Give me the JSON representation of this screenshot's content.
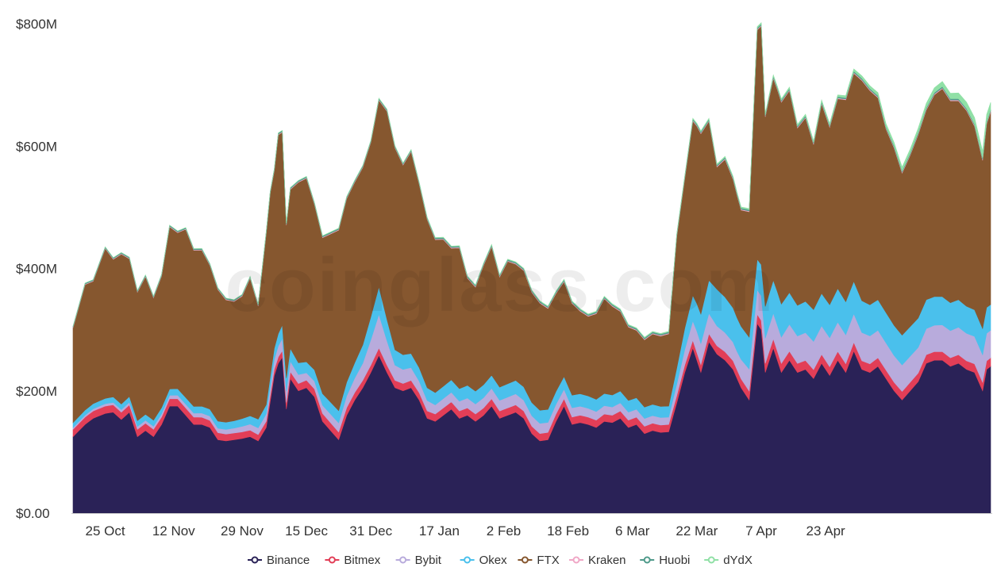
{
  "chart_data": {
    "type": "area",
    "stacked": true,
    "title": "",
    "xlabel": "",
    "ylabel": "",
    "watermark": "coinglass.com",
    "ylim": [
      0,
      800
    ],
    "y_ticks": [
      0,
      200,
      400,
      600,
      800
    ],
    "y_tick_labels": [
      "$0.00",
      "$200M",
      "$400M",
      "$600M",
      "$800M"
    ],
    "x_tick_labels": [
      "25 Oct",
      "12 Nov",
      "29 Nov",
      "15 Dec",
      "31 Dec",
      "17 Jan",
      "2 Feb",
      "18 Feb",
      "6 Mar",
      "22 Mar",
      "7 Apr",
      "23 Apr"
    ],
    "x_tick_positions": [
      8,
      25,
      42,
      58,
      74,
      91,
      107,
      123,
      139,
      155,
      171,
      187
    ],
    "x_range": [
      0,
      211
    ],
    "legend_position": "bottom",
    "series": [
      {
        "name": "Binance",
        "color": "#2a2257",
        "keyframes": [
          [
            0,
            125
          ],
          [
            3,
            145
          ],
          [
            5,
            155
          ],
          [
            8,
            163
          ],
          [
            10,
            165
          ],
          [
            12,
            153
          ],
          [
            14,
            165
          ],
          [
            16,
            125
          ],
          [
            18,
            135
          ],
          [
            20,
            125
          ],
          [
            22,
            145
          ],
          [
            24,
            175
          ],
          [
            26,
            175
          ],
          [
            28,
            160
          ],
          [
            30,
            145
          ],
          [
            32,
            145
          ],
          [
            34,
            140
          ],
          [
            36,
            120
          ],
          [
            38,
            118
          ],
          [
            40,
            120
          ],
          [
            42,
            122
          ],
          [
            44,
            125
          ],
          [
            46,
            118
          ],
          [
            48,
            140
          ],
          [
            50,
            225
          ],
          [
            51,
            245
          ],
          [
            52,
            255
          ],
          [
            53,
            170
          ],
          [
            54,
            220
          ],
          [
            56,
            200
          ],
          [
            58,
            205
          ],
          [
            60,
            190
          ],
          [
            62,
            150
          ],
          [
            64,
            135
          ],
          [
            66,
            120
          ],
          [
            68,
            160
          ],
          [
            70,
            185
          ],
          [
            72,
            205
          ],
          [
            74,
            230
          ],
          [
            76,
            258
          ],
          [
            78,
            230
          ],
          [
            80,
            205
          ],
          [
            82,
            200
          ],
          [
            84,
            205
          ],
          [
            86,
            185
          ],
          [
            88,
            155
          ],
          [
            90,
            150
          ],
          [
            92,
            160
          ],
          [
            94,
            170
          ],
          [
            96,
            155
          ],
          [
            98,
            160
          ],
          [
            100,
            150
          ],
          [
            102,
            160
          ],
          [
            104,
            175
          ],
          [
            106,
            155
          ],
          [
            108,
            160
          ],
          [
            110,
            165
          ],
          [
            112,
            155
          ],
          [
            114,
            130
          ],
          [
            116,
            118
          ],
          [
            118,
            120
          ],
          [
            120,
            150
          ],
          [
            122,
            175
          ],
          [
            124,
            145
          ],
          [
            126,
            148
          ],
          [
            128,
            145
          ],
          [
            130,
            140
          ],
          [
            132,
            150
          ],
          [
            134,
            148
          ],
          [
            136,
            155
          ],
          [
            138,
            140
          ],
          [
            140,
            145
          ],
          [
            142,
            130
          ],
          [
            144,
            135
          ],
          [
            146,
            132
          ],
          [
            148,
            133
          ],
          [
            150,
            180
          ],
          [
            152,
            230
          ],
          [
            154,
            270
          ],
          [
            156,
            230
          ],
          [
            158,
            280
          ],
          [
            160,
            260
          ],
          [
            162,
            250
          ],
          [
            164,
            235
          ],
          [
            166,
            205
          ],
          [
            168,
            185
          ],
          [
            170,
            310
          ],
          [
            171,
            300
          ],
          [
            172,
            230
          ],
          [
            174,
            270
          ],
          [
            176,
            230
          ],
          [
            178,
            250
          ],
          [
            180,
            230
          ],
          [
            182,
            235
          ],
          [
            184,
            220
          ],
          [
            186,
            245
          ],
          [
            188,
            225
          ],
          [
            190,
            250
          ],
          [
            192,
            230
          ],
          [
            194,
            265
          ],
          [
            196,
            235
          ],
          [
            198,
            230
          ],
          [
            200,
            240
          ],
          [
            202,
            220
          ],
          [
            204,
            200
          ],
          [
            206,
            185
          ],
          [
            208,
            200
          ],
          [
            210,
            215
          ],
          [
            212,
            245
          ],
          [
            214,
            250
          ],
          [
            216,
            250
          ],
          [
            218,
            240
          ],
          [
            220,
            245
          ],
          [
            222,
            235
          ],
          [
            224,
            230
          ],
          [
            226,
            200
          ],
          [
            227,
            235
          ],
          [
            228,
            240
          ]
        ]
      },
      {
        "name": "Bitmex",
        "color": "#e23e57",
        "keyframes": [
          [
            0,
            12
          ],
          [
            30,
            12
          ],
          [
            50,
            10
          ],
          [
            60,
            13
          ],
          [
            75,
            12
          ],
          [
            100,
            12
          ],
          [
            125,
            12
          ],
          [
            150,
            12
          ],
          [
            170,
            15
          ],
          [
            200,
            14
          ],
          [
            228,
            14
          ]
        ]
      },
      {
        "name": "Bybit",
        "color": "#b8abdc",
        "keyframes": [
          [
            0,
            3
          ],
          [
            20,
            5
          ],
          [
            40,
            8
          ],
          [
            48,
            12
          ],
          [
            52,
            20
          ],
          [
            58,
            12
          ],
          [
            66,
            15
          ],
          [
            72,
            28
          ],
          [
            76,
            55
          ],
          [
            80,
            25
          ],
          [
            90,
            15
          ],
          [
            110,
            18
          ],
          [
            130,
            14
          ],
          [
            148,
            12
          ],
          [
            155,
            35
          ],
          [
            165,
            30
          ],
          [
            170,
            40
          ],
          [
            180,
            45
          ],
          [
            190,
            48
          ],
          [
            200,
            45
          ],
          [
            210,
            42
          ],
          [
            220,
            45
          ],
          [
            228,
            45
          ]
        ]
      },
      {
        "name": "Okex",
        "color": "#4ac0ec",
        "keyframes": [
          [
            0,
            8
          ],
          [
            20,
            10
          ],
          [
            40,
            12
          ],
          [
            48,
            15
          ],
          [
            52,
            22
          ],
          [
            58,
            18
          ],
          [
            66,
            20
          ],
          [
            70,
            25
          ],
          [
            72,
            30
          ],
          [
            76,
            45
          ],
          [
            80,
            25
          ],
          [
            90,
            20
          ],
          [
            110,
            22
          ],
          [
            130,
            20
          ],
          [
            148,
            18
          ],
          [
            152,
            35
          ],
          [
            155,
            45
          ],
          [
            160,
            60
          ],
          [
            165,
            55
          ],
          [
            170,
            50
          ],
          [
            175,
            55
          ],
          [
            180,
            50
          ],
          [
            190,
            55
          ],
          [
            200,
            50
          ],
          [
            210,
            48
          ],
          [
            220,
            45
          ],
          [
            228,
            42
          ]
        ]
      },
      {
        "name": "FTX",
        "color": "#86572f",
        "keyframes": [
          [
            0,
            155
          ],
          [
            3,
            205
          ],
          [
            5,
            200
          ],
          [
            8,
            245
          ],
          [
            10,
            225
          ],
          [
            12,
            245
          ],
          [
            14,
            225
          ],
          [
            16,
            210
          ],
          [
            18,
            225
          ],
          [
            20,
            200
          ],
          [
            22,
            215
          ],
          [
            24,
            265
          ],
          [
            26,
            255
          ],
          [
            28,
            275
          ],
          [
            30,
            255
          ],
          [
            32,
            255
          ],
          [
            34,
            235
          ],
          [
            36,
            215
          ],
          [
            38,
            200
          ],
          [
            40,
            195
          ],
          [
            42,
            200
          ],
          [
            44,
            225
          ],
          [
            46,
            185
          ],
          [
            48,
            280
          ],
          [
            49,
            300
          ],
          [
            50,
            290
          ],
          [
            51,
            325
          ],
          [
            52,
            315
          ],
          [
            53,
            250
          ],
          [
            54,
            260
          ],
          [
            56,
            295
          ],
          [
            58,
            300
          ],
          [
            60,
            270
          ],
          [
            62,
            255
          ],
          [
            64,
            275
          ],
          [
            66,
            295
          ],
          [
            68,
            300
          ],
          [
            70,
            295
          ],
          [
            72,
            290
          ],
          [
            74,
            285
          ],
          [
            76,
            305
          ],
          [
            78,
            340
          ],
          [
            80,
            330
          ],
          [
            82,
            310
          ],
          [
            84,
            330
          ],
          [
            86,
            300
          ],
          [
            88,
            275
          ],
          [
            90,
            250
          ],
          [
            92,
            240
          ],
          [
            94,
            215
          ],
          [
            96,
            230
          ],
          [
            98,
            175
          ],
          [
            100,
            170
          ],
          [
            102,
            195
          ],
          [
            104,
            210
          ],
          [
            106,
            180
          ],
          [
            108,
            200
          ],
          [
            110,
            190
          ],
          [
            112,
            190
          ],
          [
            114,
            180
          ],
          [
            116,
            175
          ],
          [
            118,
            165
          ],
          [
            120,
            160
          ],
          [
            122,
            155
          ],
          [
            124,
            150
          ],
          [
            126,
            135
          ],
          [
            128,
            130
          ],
          [
            130,
            140
          ],
          [
            132,
            155
          ],
          [
            134,
            145
          ],
          [
            136,
            130
          ],
          [
            138,
            120
          ],
          [
            140,
            110
          ],
          [
            142,
            110
          ],
          [
            144,
            115
          ],
          [
            146,
            115
          ],
          [
            148,
            118
          ],
          [
            150,
            215
          ],
          [
            152,
            245
          ],
          [
            154,
            285
          ],
          [
            156,
            295
          ],
          [
            158,
            260
          ],
          [
            160,
            200
          ],
          [
            162,
            225
          ],
          [
            164,
            210
          ],
          [
            166,
            190
          ],
          [
            168,
            205
          ],
          [
            170,
            375
          ],
          [
            171,
            390
          ],
          [
            172,
            310
          ],
          [
            174,
            330
          ],
          [
            176,
            330
          ],
          [
            178,
            330
          ],
          [
            180,
            290
          ],
          [
            182,
            300
          ],
          [
            184,
            270
          ],
          [
            186,
            310
          ],
          [
            188,
            290
          ],
          [
            190,
            310
          ],
          [
            192,
            330
          ],
          [
            194,
            340
          ],
          [
            196,
            360
          ],
          [
            198,
            350
          ],
          [
            200,
            330
          ],
          [
            202,
            300
          ],
          [
            204,
            290
          ],
          [
            206,
            265
          ],
          [
            208,
            280
          ],
          [
            210,
            300
          ],
          [
            212,
            310
          ],
          [
            214,
            330
          ],
          [
            216,
            340
          ],
          [
            218,
            330
          ],
          [
            220,
            325
          ],
          [
            222,
            320
          ],
          [
            224,
            300
          ],
          [
            226,
            275
          ],
          [
            227,
            300
          ],
          [
            228,
            315
          ]
        ]
      },
      {
        "name": "Kraken",
        "color": "#f0a7c6",
        "keyframes": [
          [
            0,
            1
          ],
          [
            228,
            1.5
          ]
        ]
      },
      {
        "name": "Huobi",
        "color": "#4f9a8a",
        "keyframes": [
          [
            0,
            1.5
          ],
          [
            150,
            2
          ],
          [
            228,
            2
          ]
        ]
      },
      {
        "name": "dYdX",
        "color": "#90e0a6",
        "keyframes": [
          [
            0,
            0
          ],
          [
            150,
            1
          ],
          [
            190,
            3
          ],
          [
            215,
            8
          ],
          [
            228,
            12
          ]
        ]
      }
    ]
  }
}
